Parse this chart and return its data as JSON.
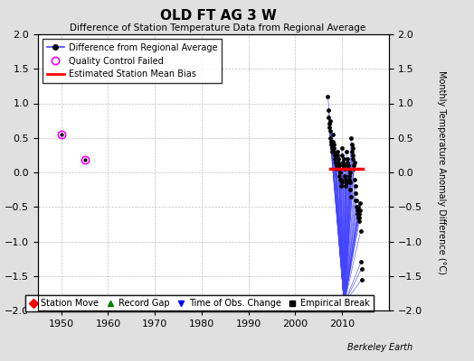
{
  "title": "OLD FT AG 3 W",
  "subtitle": "Difference of Station Temperature Data from Regional Average",
  "ylabel": "Monthly Temperature Anomaly Difference (°C)",
  "credit": "Berkeley Earth",
  "ylim": [
    -2,
    2
  ],
  "xlim": [
    1945,
    2020
  ],
  "xticks": [
    1950,
    1960,
    1970,
    1980,
    1990,
    2000,
    2010
  ],
  "yticks": [
    -2,
    -1.5,
    -1,
    -0.5,
    0,
    0.5,
    1,
    1.5,
    2
  ],
  "bg_color": "#e0e0e0",
  "plot_bg_color": "#ffffff",
  "qc_failed_points": [
    [
      1950,
      0.55
    ],
    [
      1955,
      0.18
    ]
  ],
  "main_line_color": "#4444ff",
  "main_marker_color": "#000000",
  "qc_color": "#ff00ff",
  "bias_color": "#ff0000",
  "grid_color": "#c0c0c0",
  "monthly_years": [
    2007.0,
    2007.083,
    2007.167,
    2007.25,
    2007.333,
    2007.417,
    2007.5,
    2007.583,
    2007.667,
    2007.75,
    2007.833,
    2007.917,
    2008.0,
    2008.083,
    2008.167,
    2008.25,
    2008.333,
    2008.417,
    2008.5,
    2008.583,
    2008.667,
    2008.75,
    2008.833,
    2008.917,
    2009.0,
    2009.083,
    2009.167,
    2009.25,
    2009.333,
    2009.417,
    2009.5,
    2009.583,
    2009.667,
    2009.75,
    2009.833,
    2009.917,
    2010.0,
    2010.083,
    2010.167,
    2010.25,
    2010.333,
    2010.417,
    2010.5,
    2010.583,
    2010.667,
    2010.75,
    2010.833,
    2010.917,
    2011.0,
    2011.083,
    2011.167,
    2011.25,
    2011.333,
    2011.417,
    2011.5,
    2011.583,
    2011.667,
    2011.75,
    2011.833,
    2011.917,
    2012.0,
    2012.083,
    2012.167,
    2012.25,
    2012.333,
    2012.417,
    2012.5,
    2012.583,
    2012.667,
    2012.75,
    2012.833,
    2012.917,
    2013.0,
    2013.083,
    2013.167,
    2013.25,
    2013.333,
    2013.417,
    2013.5,
    2013.583,
    2013.667,
    2013.75,
    2013.833,
    2013.917,
    2014.0,
    2014.083,
    2014.167,
    2014.25
  ],
  "monthly_vals": [
    1.1,
    0.8,
    0.9,
    0.7,
    0.65,
    0.75,
    0.6,
    0.5,
    0.4,
    0.45,
    0.35,
    0.3,
    0.55,
    0.45,
    0.35,
    0.4,
    0.3,
    0.25,
    0.2,
    0.15,
    0.25,
    0.1,
    0.05,
    0.1,
    0.3,
    0.25,
    0.15,
    0.2,
    0.1,
    0.05,
    -0.05,
    -0.1,
    0.0,
    -0.1,
    -0.2,
    -0.15,
    0.35,
    0.25,
    0.15,
    0.1,
    0.2,
    0.1,
    0.05,
    -0.05,
    0.05,
    -0.1,
    -0.2,
    -0.15,
    0.3,
    0.2,
    0.15,
    0.1,
    0.05,
    0.1,
    -0.05,
    -0.1,
    0.0,
    -0.15,
    -0.25,
    -0.35,
    0.5,
    0.4,
    0.3,
    0.25,
    0.35,
    0.2,
    0.1,
    0.05,
    0.15,
    -0.1,
    -0.2,
    -0.3,
    -0.4,
    -0.5,
    -0.4,
    -0.55,
    -0.6,
    -0.65,
    -0.5,
    -0.6,
    -0.65,
    -0.7,
    -0.55,
    -0.45,
    -0.85,
    -1.3,
    -1.4,
    -1.55
  ],
  "base_x": 2010.5,
  "base_y": -1.9,
  "bias_x_start": 2007.5,
  "bias_x_end": 2014.5,
  "bias_y": 0.05
}
